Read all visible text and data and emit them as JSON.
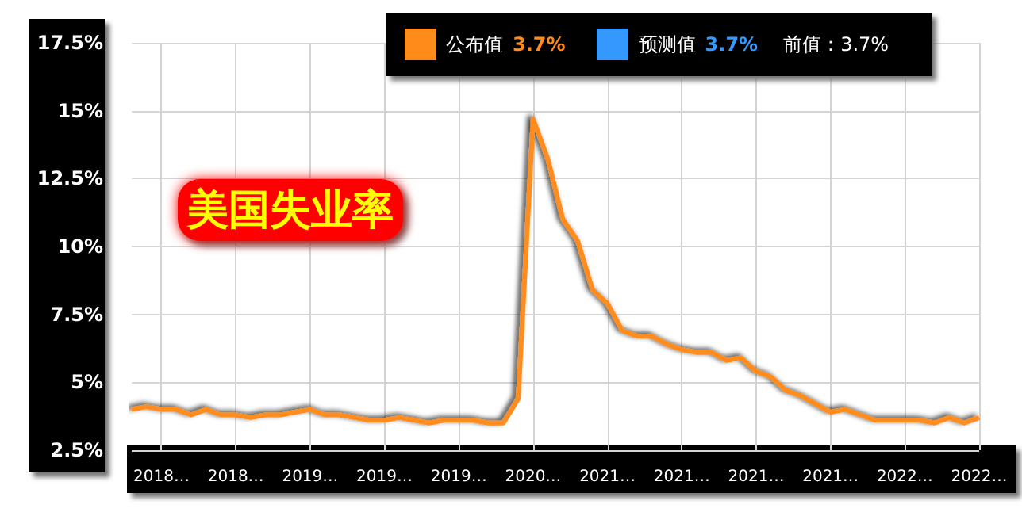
{
  "chart_data": {
    "type": "line",
    "title": "美国失业率",
    "categories": [
      null,
      null,
      "2018…",
      null,
      null,
      null,
      null,
      "2018…",
      null,
      null,
      null,
      null,
      "2019…",
      null,
      null,
      null,
      null,
      "2019…",
      null,
      null,
      null,
      null,
      "2019…",
      null,
      null,
      null,
      null,
      "2020…",
      null,
      null,
      null,
      null,
      "2021…",
      null,
      null,
      null,
      null,
      "2021…",
      null,
      null,
      null,
      null,
      "2021…",
      null,
      null,
      null,
      null,
      "2021…",
      null,
      null,
      null,
      null,
      "2022…",
      null,
      null,
      null,
      null,
      "2022…"
    ],
    "series": [
      {
        "name": "公布值",
        "color": "#ff8c1a",
        "values": [
          4.0,
          4.1,
          4.0,
          4.0,
          3.8,
          4.0,
          3.8,
          3.8,
          3.7,
          3.8,
          3.8,
          3.9,
          4.0,
          3.8,
          3.8,
          3.7,
          3.6,
          3.6,
          3.7,
          3.6,
          3.5,
          3.6,
          3.6,
          3.6,
          3.5,
          3.5,
          4.4,
          14.7,
          13.2,
          11.0,
          10.2,
          8.4,
          7.9,
          6.9,
          6.7,
          6.7,
          6.4,
          6.2,
          6.1,
          6.1,
          5.8,
          5.9,
          5.4,
          5.2,
          4.7,
          4.5,
          4.2,
          3.9,
          4.0,
          3.8,
          3.6,
          3.6,
          3.6,
          3.6,
          3.5,
          3.7,
          3.5,
          3.7
        ]
      }
    ],
    "ylim": [
      2.5,
      17.5
    ],
    "yticks": [
      {
        "value": 2.5,
        "label": "2.5%"
      },
      {
        "value": 5,
        "label": "5%"
      },
      {
        "value": 7.5,
        "label": "7.5%"
      },
      {
        "value": 10,
        "label": "10%"
      },
      {
        "value": 12.5,
        "label": "12.5%"
      },
      {
        "value": 15,
        "label": "15%"
      },
      {
        "value": 17.5,
        "label": "17.5%"
      }
    ],
    "annotations": [
      "3.7%",
      "预测值",
      "3.7%",
      "前值：3.7%"
    ],
    "grid": true,
    "legend": "top",
    "marker": "none",
    "line_style": "solid"
  }
}
